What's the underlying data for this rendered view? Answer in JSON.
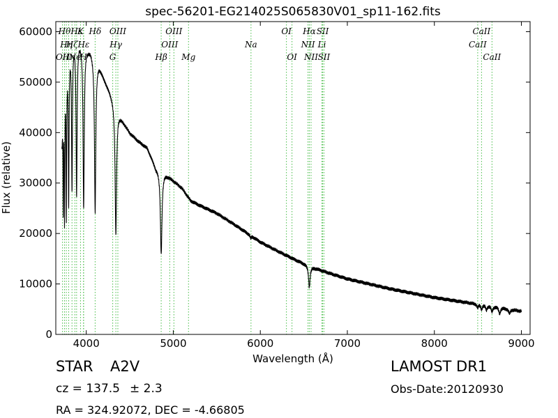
{
  "chart_data": {
    "type": "line",
    "title": "spec-56201-EG214025S065830V01_sp11-162.fits",
    "xlabel": "Wavelength (Å)",
    "ylabel": "Flux (relative)",
    "xlim": [
      3650,
      9100
    ],
    "ylim": [
      0,
      62000
    ],
    "xticks": [
      4000,
      5000,
      6000,
      7000,
      8000,
      9000
    ],
    "yticks": [
      0,
      10000,
      20000,
      30000,
      40000,
      50000,
      60000
    ],
    "grid": false,
    "line_color": "#000000",
    "marker_color": "#44bb44",
    "continuum": [
      [
        3720,
        42000
      ],
      [
        3760,
        52000
      ],
      [
        3800,
        57000
      ],
      [
        3850,
        59000
      ],
      [
        3900,
        59000
      ],
      [
        3950,
        58000
      ],
      [
        4000,
        57000
      ],
      [
        4050,
        56500
      ],
      [
        4100,
        55000
      ],
      [
        4150,
        53500
      ],
      [
        4200,
        51000
      ],
      [
        4250,
        49000
      ],
      [
        4300,
        47000
      ],
      [
        4350,
        45000
      ],
      [
        4400,
        43000
      ],
      [
        4500,
        40000
      ],
      [
        4600,
        38300
      ],
      [
        4700,
        37000
      ],
      [
        4800,
        33000
      ],
      [
        4900,
        32000
      ],
      [
        5000,
        30500
      ],
      [
        5100,
        29000
      ],
      [
        5200,
        26500
      ],
      [
        5300,
        25600
      ],
      [
        5500,
        24000
      ],
      [
        5700,
        21800
      ],
      [
        5900,
        19500
      ],
      [
        6000,
        18300
      ],
      [
        6200,
        16500
      ],
      [
        6400,
        14800
      ],
      [
        6600,
        13300
      ],
      [
        6800,
        12100
      ],
      [
        7000,
        11000
      ],
      [
        7500,
        9000
      ],
      [
        8000,
        7300
      ],
      [
        8300,
        6500
      ],
      [
        8500,
        6000
      ],
      [
        8700,
        5500
      ],
      [
        8900,
        4900
      ],
      [
        9000,
        4600
      ]
    ],
    "absorption_lines": [
      {
        "center": 3722,
        "depth": 4000,
        "width": 3
      },
      {
        "center": 3735,
        "depth": 20000,
        "width": 3
      },
      {
        "center": 3750,
        "depth": 26000,
        "width": 4
      },
      {
        "center": 3771,
        "depth": 29000,
        "width": 4
      },
      {
        "center": 3798,
        "depth": 30000,
        "width": 5
      },
      {
        "center": 3836,
        "depth": 29000,
        "width": 6
      },
      {
        "center": 3889,
        "depth": 31000,
        "width": 7
      },
      {
        "center": 3970,
        "depth": 32000,
        "width": 8
      },
      {
        "center": 4102,
        "depth": 30500,
        "width": 9
      },
      {
        "center": 4340,
        "depth": 25500,
        "width": 10
      },
      {
        "center": 4861,
        "depth": 16500,
        "width": 11
      },
      {
        "center": 6563,
        "depth": 4200,
        "width": 11
      },
      {
        "center": 5890,
        "depth": 600,
        "width": 8
      },
      {
        "center": 8498,
        "depth": 700,
        "width": 10
      },
      {
        "center": 8542,
        "depth": 900,
        "width": 10
      },
      {
        "center": 8598,
        "depth": 900,
        "width": 10
      },
      {
        "center": 8662,
        "depth": 1100,
        "width": 11
      },
      {
        "center": 8750,
        "depth": 1200,
        "width": 12
      },
      {
        "center": 8863,
        "depth": 900,
        "width": 12
      }
    ],
    "line_markers": [
      {
        "wavelength": 3727,
        "labels": [
          "OII"
        ],
        "rows": [
          2
        ]
      },
      {
        "wavelength": 3750,
        "labels": [
          "Hθ"
        ],
        "rows": [
          0
        ]
      },
      {
        "wavelength": 3771,
        "labels": [
          "Hη"
        ],
        "rows": [
          1
        ]
      },
      {
        "wavelength": 3798,
        "labels": [
          "Hη"
        ],
        "rows": [
          2
        ]
      },
      {
        "wavelength": 3836,
        "labels": [
          "Hζ"
        ],
        "rows": [
          1
        ]
      },
      {
        "wavelength": 3869,
        "labels": [
          "Ne"
        ],
        "rows": [
          2
        ]
      },
      {
        "wavelength": 3889,
        "labels": [
          "Hε"
        ],
        "rows": [
          0
        ]
      },
      {
        "wavelength": 3934,
        "labels": [
          "K"
        ],
        "rows": [
          0
        ]
      },
      {
        "wavelength": 3968,
        "labels": [
          "H"
        ],
        "rows": [
          2
        ]
      },
      {
        "wavelength": 3970,
        "labels": [
          "Hε"
        ],
        "rows": [
          1
        ]
      },
      {
        "wavelength": 4102,
        "labels": [
          "Hδ"
        ],
        "rows": [
          0
        ]
      },
      {
        "wavelength": 4304,
        "labels": [
          "G"
        ],
        "rows": [
          2
        ]
      },
      {
        "wavelength": 4340,
        "labels": [
          "Hγ"
        ],
        "rows": [
          1
        ]
      },
      {
        "wavelength": 4363,
        "labels": [
          "OIII"
        ],
        "rows": [
          0
        ]
      },
      {
        "wavelength": 4861,
        "labels": [
          "Hβ"
        ],
        "rows": [
          2
        ]
      },
      {
        "wavelength": 4959,
        "labels": [
          "OIII"
        ],
        "rows": [
          1
        ]
      },
      {
        "wavelength": 5007,
        "labels": [
          "OIII"
        ],
        "rows": [
          0
        ]
      },
      {
        "wavelength": 5175,
        "labels": [
          "Mg"
        ],
        "rows": [
          2
        ]
      },
      {
        "wavelength": 5893,
        "labels": [
          "Na"
        ],
        "rows": [
          1
        ]
      },
      {
        "wavelength": 6300,
        "labels": [
          "OI"
        ],
        "rows": [
          0
        ]
      },
      {
        "wavelength": 6364,
        "labels": [
          "OI"
        ],
        "rows": [
          2
        ]
      },
      {
        "wavelength": 6548,
        "labels": [
          "NII"
        ],
        "rows": [
          1
        ]
      },
      {
        "wavelength": 6563,
        "labels": [
          "Hα"
        ],
        "rows": [
          0
        ]
      },
      {
        "wavelength": 6583,
        "labels": [
          "NII"
        ],
        "rows": [
          2
        ]
      },
      {
        "wavelength": 6708,
        "labels": [
          "Li"
        ],
        "rows": [
          1
        ]
      },
      {
        "wavelength": 6716,
        "labels": [
          "SII"
        ],
        "rows": [
          0
        ]
      },
      {
        "wavelength": 6731,
        "labels": [
          "SII"
        ],
        "rows": [
          2
        ]
      },
      {
        "wavelength": 8498,
        "labels": [
          "CaII"
        ],
        "rows": [
          1
        ]
      },
      {
        "wavelength": 8542,
        "labels": [
          "CaII"
        ],
        "rows": [
          0
        ]
      },
      {
        "wavelength": 8662,
        "labels": [
          "CaII"
        ],
        "rows": [
          2
        ]
      }
    ]
  },
  "info": {
    "object_class": "STAR",
    "subclass": "A2V",
    "survey": "LAMOST DR1",
    "cz_label": "cz = 137.5",
    "cz_pm": "± 2.3",
    "obs_date": "Obs-Date:20120930",
    "coords": "RA = 324.92072, DEC = -4.66805"
  }
}
